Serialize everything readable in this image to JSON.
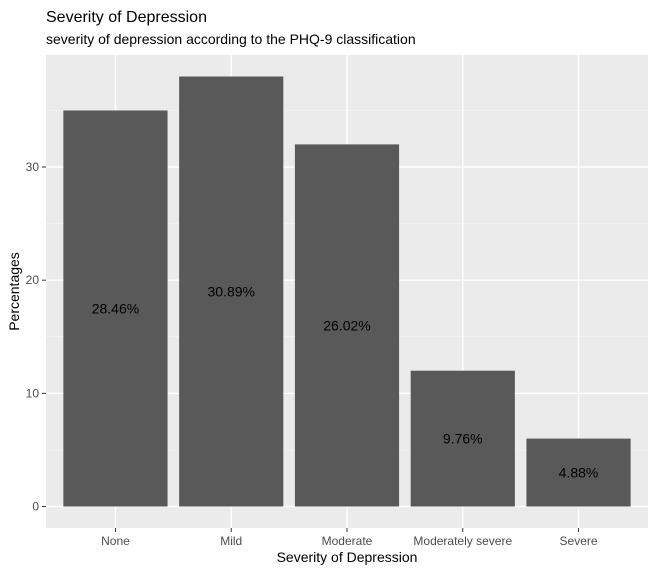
{
  "chart_data": {
    "type": "bar",
    "title": "Severity of Depression",
    "subtitle": "severity of depression according to the PHQ-9 classification",
    "xlabel": "Severity of Depression",
    "ylabel": "Percentages",
    "categories": [
      "None",
      "Mild",
      "Moderate",
      "Moderately severe",
      "Severe"
    ],
    "values": [
      35,
      38,
      32,
      12,
      6
    ],
    "data_labels": [
      "28.46%",
      "30.89%",
      "26.02%",
      "9.76%",
      "4.88%"
    ],
    "yticks": [
      0,
      10,
      20,
      30
    ],
    "ylim": [
      -1.9,
      39.9
    ],
    "grid": true,
    "colors": {
      "bar": "#595959",
      "panel": "#ebebeb",
      "grid_major": "#ffffff",
      "grid_minor": "#f5f5f5"
    }
  }
}
